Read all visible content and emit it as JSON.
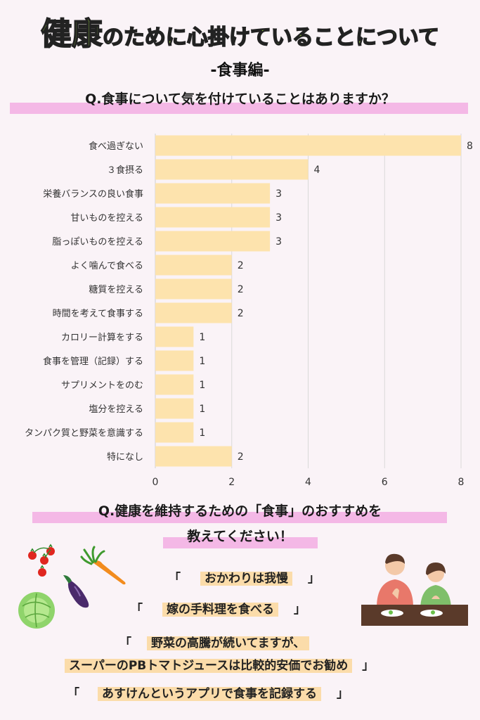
{
  "header": {
    "title_part1": "健康",
    "title_part2": "のために心掛けていること",
    "title_part3": "について",
    "subtitle": "-食事編-"
  },
  "question1": "Q.食事について気を付けていることはありますか？",
  "chart_data": {
    "type": "bar",
    "orientation": "horizontal",
    "categories": [
      "食べ過ぎない",
      "３食摂る",
      "栄養バランスの良い食事",
      "甘いものを控える",
      "脂っぽいものを控える",
      "よく噛んで食べる",
      "糖質を控える",
      "時間を考えて食事する",
      "カロリー計算をする",
      "食事を管理（記録）する",
      "サプリメントをのむ",
      "塩分を控える",
      "タンパク質と野菜を意識する",
      "特になし"
    ],
    "values": [
      8,
      4,
      3,
      3,
      3,
      2,
      2,
      2,
      1,
      1,
      1,
      1,
      1,
      2
    ],
    "xlim": [
      0,
      8
    ],
    "xticks": [
      0,
      2,
      4,
      6,
      8
    ],
    "grid": true,
    "bar_color": "#fde3ad"
  },
  "question2": {
    "line1": "Q.健康を維持するための「食事」のおすすめを",
    "line2": "教えてください！"
  },
  "recommendations": [
    {
      "open": "「",
      "text": "おかわりは我慢",
      "close": "」"
    },
    {
      "open": "「",
      "text": "嫁の手料理を食べる",
      "close": "」"
    },
    {
      "open": "「",
      "text1": "野菜の高騰が続いてますが、",
      "text2": "スーパーのPBトマトジュースは比較的安価でお勧め",
      "close": "」"
    },
    {
      "open": "「",
      "text": "あすけんというアプリで食事を記録する",
      "close": "」"
    }
  ],
  "colors": {
    "title_green": "#a6e04a",
    "highlight_pink": "#f4b8e6",
    "highlight_peach": "#fbdcaa",
    "background": "#faf3f7"
  }
}
